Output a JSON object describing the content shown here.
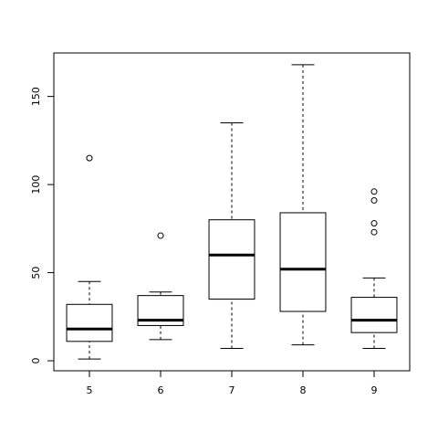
{
  "chart_data": {
    "type": "boxplot",
    "categories": [
      "5",
      "6",
      "7",
      "8",
      "9"
    ],
    "boxes": [
      {
        "min": 1,
        "q1": 11,
        "median": 18,
        "q3": 32,
        "max": 45,
        "outliers": [
          115
        ]
      },
      {
        "min": 12,
        "q1": 20,
        "median": 23,
        "q3": 37,
        "max": 39,
        "outliers": [
          71
        ]
      },
      {
        "min": 7,
        "q1": 35,
        "median": 60,
        "q3": 80,
        "max": 135,
        "outliers": []
      },
      {
        "min": 9,
        "q1": 28,
        "median": 52,
        "q3": 84,
        "max": 168,
        "outliers": []
      },
      {
        "min": 7,
        "q1": 16,
        "median": 23,
        "q3": 36,
        "max": 47,
        "outliers": [
          96,
          91,
          78,
          73
        ]
      }
    ],
    "color": "#000000",
    "ylim": [
      -5.68,
      174.68
    ],
    "yticks": [
      0,
      50,
      100,
      150
    ]
  }
}
